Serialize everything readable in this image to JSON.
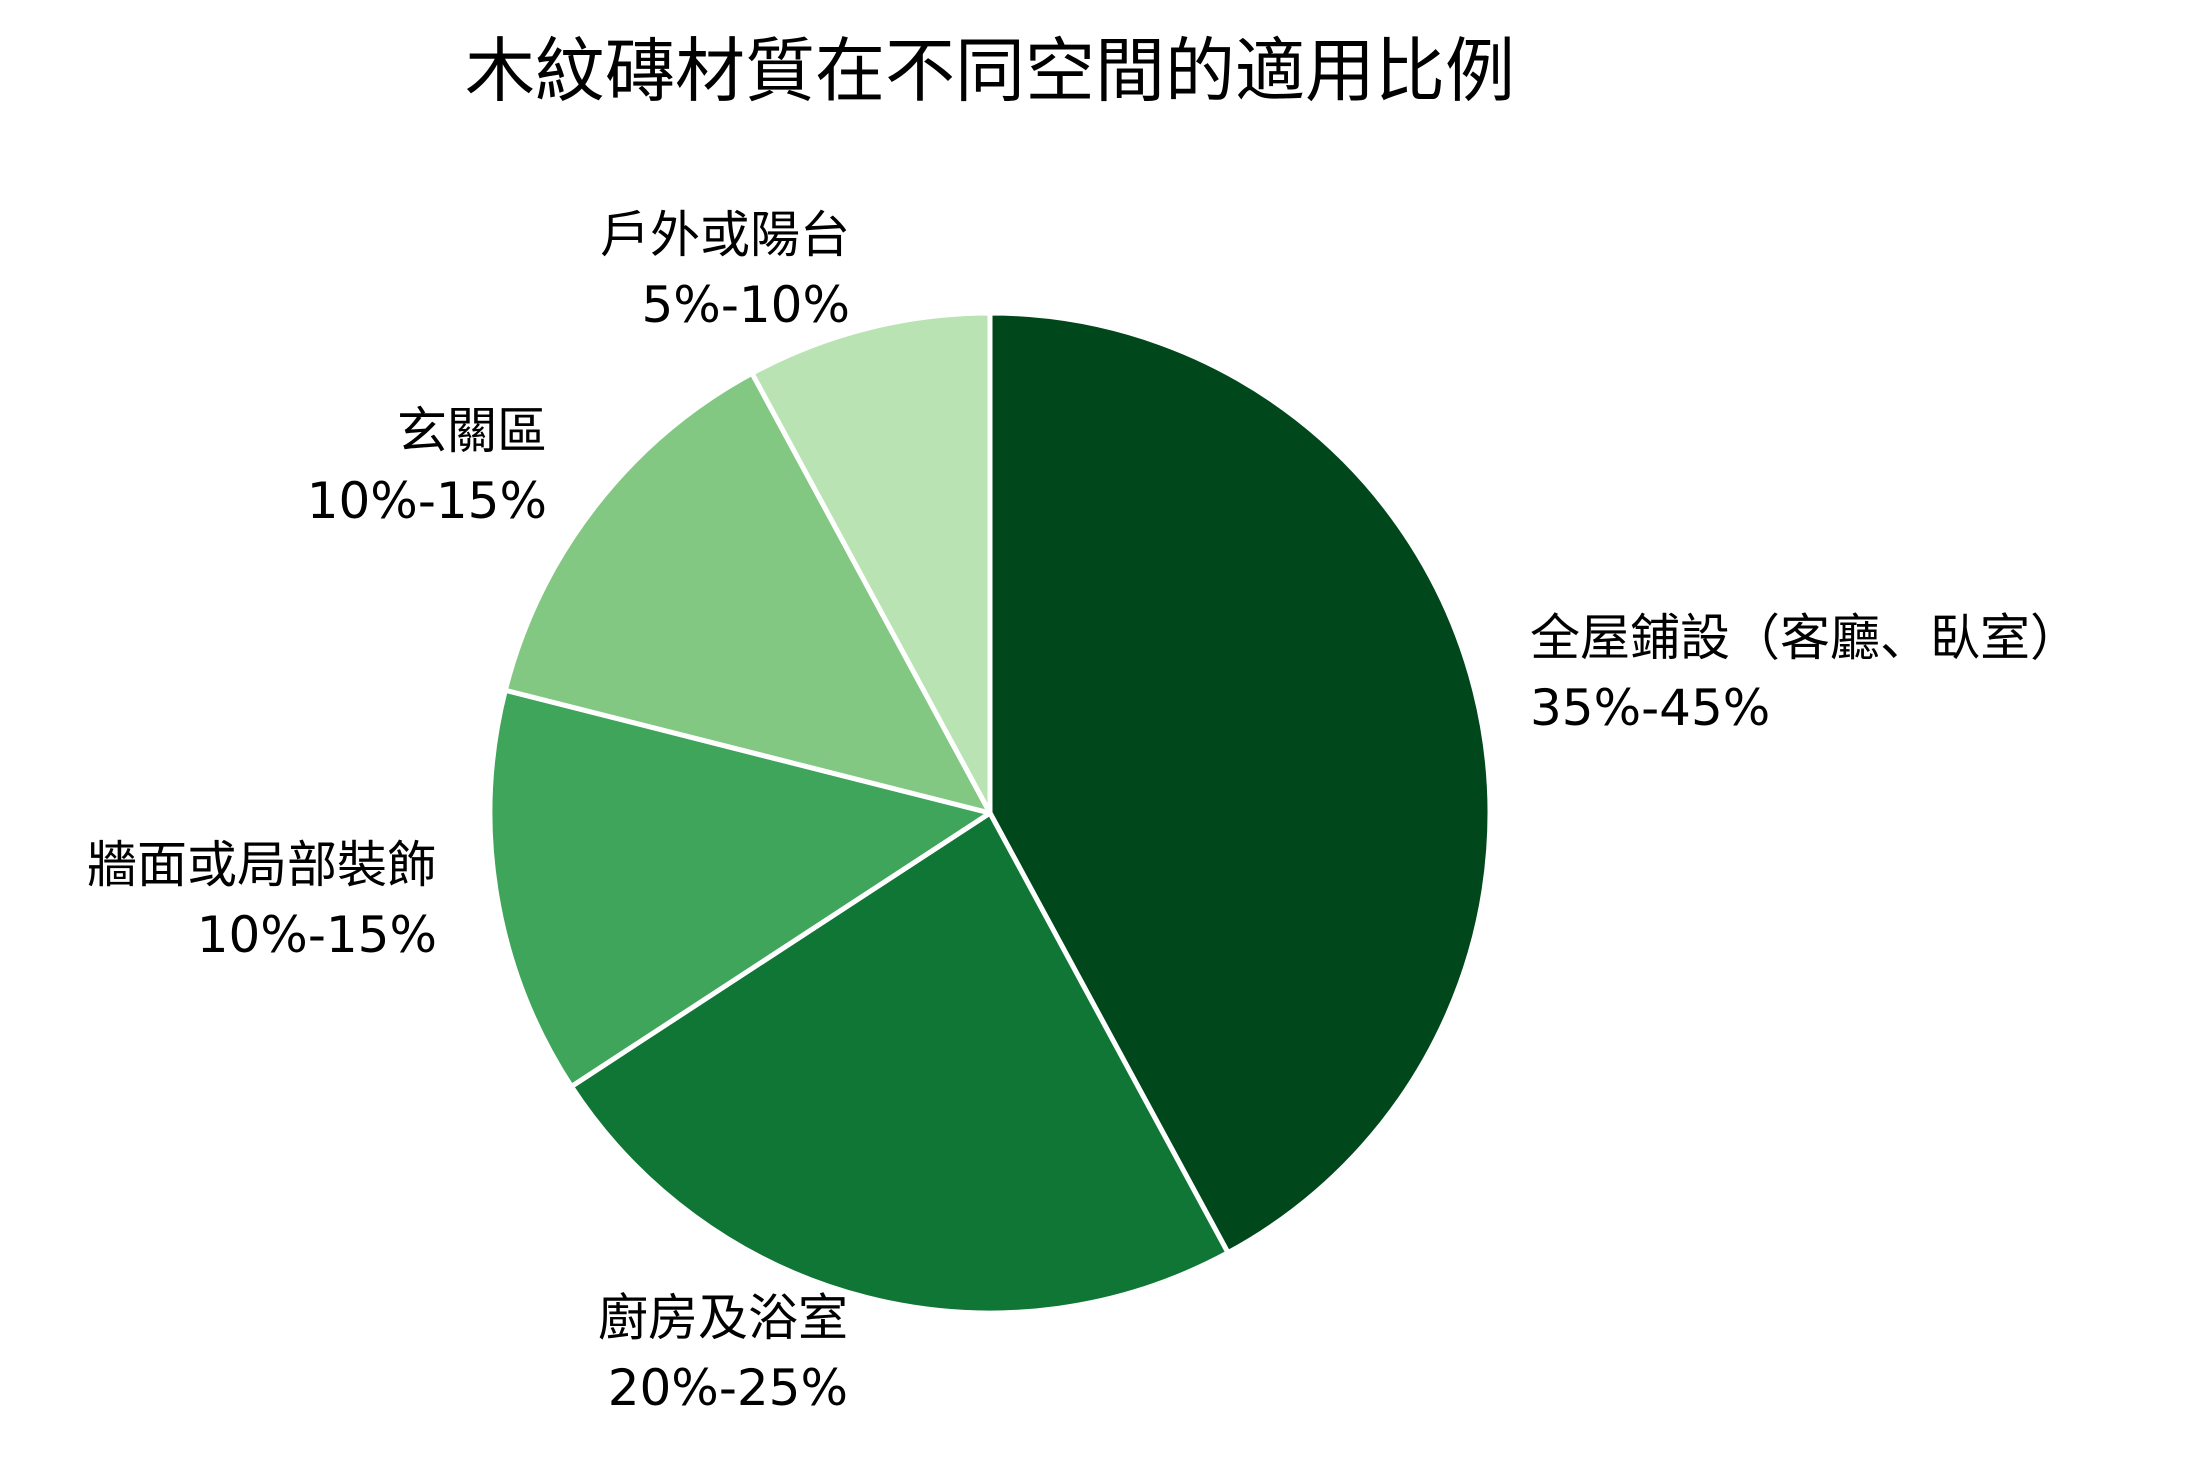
{
  "chart_data": {
    "type": "pie",
    "title": "木紋磚材質在不同空間的適用比例",
    "slices": [
      {
        "label": "全屋鋪設（客廳、臥室）",
        "range_label": "35%-45%",
        "value": 40,
        "color": "#00471c"
      },
      {
        "label": "廚房及浴室",
        "range_label": "20%-25%",
        "value": 22.5,
        "color": "#0f7636"
      },
      {
        "label": "牆面或局部裝飾",
        "range_label": "10%-15%",
        "value": 12.5,
        "color": "#3ea55b"
      },
      {
        "label": "玄關區",
        "range_label": "10%-15%",
        "value": 12.5,
        "color": "#82c882"
      },
      {
        "label": "戶外或陽台",
        "range_label": "5%-10%",
        "value": 7.5,
        "color": "#b9e3b3"
      }
    ],
    "start_angle": "top",
    "direction": "clockwise",
    "edge_color": "#ffffff"
  }
}
